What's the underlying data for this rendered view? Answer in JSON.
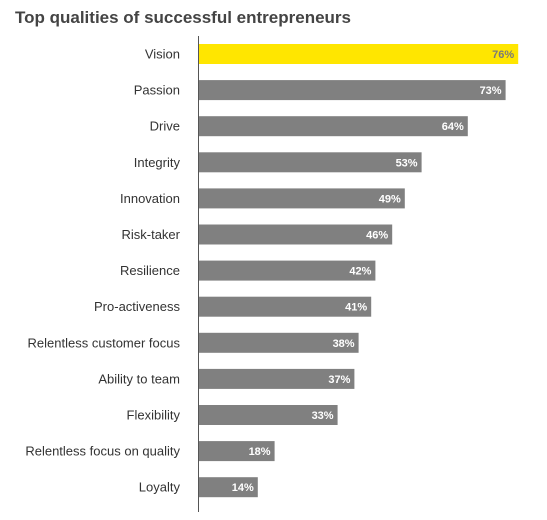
{
  "chart_data": {
    "type": "bar",
    "orientation": "horizontal",
    "title": "Top qualities of successful entrepreneurs",
    "categories": [
      "Vision",
      "Passion",
      "Drive",
      "Integrity",
      "Innovation",
      "Risk-taker",
      "Resilience",
      "Pro-activeness",
      "Relentless customer focus",
      "Ability to team",
      "Flexibility",
      "Relentless focus on quality",
      "Loyalty"
    ],
    "values": [
      76,
      73,
      64,
      53,
      49,
      46,
      42,
      41,
      38,
      37,
      33,
      18,
      14
    ],
    "value_labels": [
      "76%",
      "73%",
      "64%",
      "53%",
      "49%",
      "46%",
      "42%",
      "41%",
      "38%",
      "37%",
      "33%",
      "18%",
      "14%"
    ],
    "xlim": [
      0,
      100
    ],
    "highlight_index": 0,
    "colors": {
      "bar": "#808080",
      "highlight": "#ffe600",
      "label_on_bar": "#ffffff",
      "label_on_highlight": "#7a7a7a",
      "axis": "#555555"
    }
  }
}
